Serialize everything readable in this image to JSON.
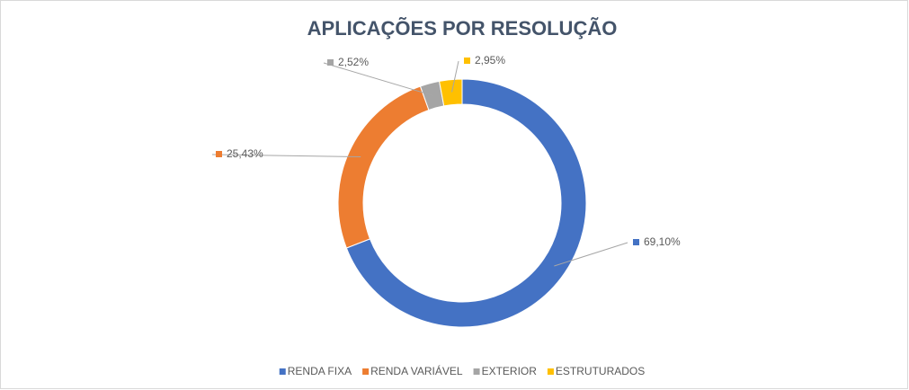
{
  "chart_data": {
    "type": "donut",
    "title": "APLICAÇÕES POR RESOLUÇÃO",
    "categories": [
      "RENDA FIXA",
      "RENDA VARIÁVEL",
      "EXTERIOR",
      "ESTRUTURADOS"
    ],
    "values": [
      69.1,
      25.43,
      2.52,
      2.95
    ],
    "value_labels": [
      "69,10%",
      "25,43%",
      "2,52%",
      "2,95%"
    ],
    "colors": [
      "#4472c4",
      "#ed7d31",
      "#a5a5a5",
      "#ffc000"
    ],
    "legend": "bottom"
  }
}
